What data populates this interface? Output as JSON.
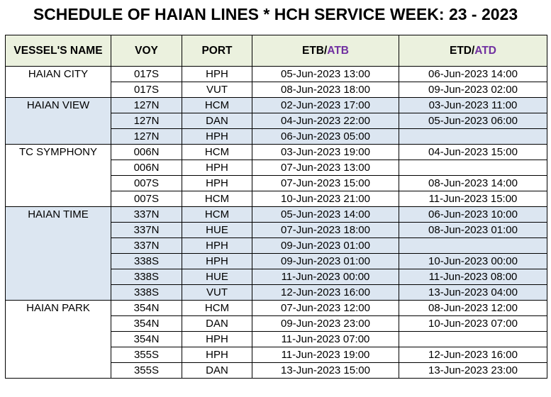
{
  "title": "SCHEDULE OF HAIAN LINES * HCH SERVICE WEEK: 23 - 2023",
  "header_color": "#ebf1de",
  "band_color": "#dce6f1",
  "accent_color": "#7030a0",
  "columns": [
    {
      "text": "VESSEL'S NAME"
    },
    {
      "text": "VOY"
    },
    {
      "text": "PORT"
    },
    {
      "text": "ETB/",
      "accent": "ATB"
    },
    {
      "text": "ETD/",
      "accent": "ATD"
    }
  ],
  "vessels": [
    {
      "name": "HAIAN CITY",
      "calls": [
        [
          "017S",
          "HPH",
          "05-Jun-2023 13:00",
          "06-Jun-2023 14:00"
        ],
        [
          "017S",
          "VUT",
          "08-Jun-2023 18:00",
          "09-Jun-2023 02:00"
        ]
      ]
    },
    {
      "name": "HAIAN VIEW",
      "calls": [
        [
          "127N",
          "HCM",
          "02-Jun-2023 17:00",
          "03-Jun-2023 11:00"
        ],
        [
          "127N",
          "DAN",
          "04-Jun-2023 22:00",
          "05-Jun-2023 06:00"
        ],
        [
          "127N",
          "HPH",
          "06-Jun-2023 05:00",
          null
        ]
      ]
    },
    {
      "name": "TC SYMPHONY",
      "calls": [
        [
          "006N",
          "HCM",
          "03-Jun-2023 19:00",
          "04-Jun-2023 15:00"
        ],
        [
          "006N",
          "HPH",
          "07-Jun-2023 13:00",
          null
        ],
        [
          "007S",
          "HPH",
          "07-Jun-2023 15:00",
          "08-Jun-2023 14:00"
        ],
        [
          "007S",
          "HCM",
          "10-Jun-2023 21:00",
          "11-Jun-2023 15:00"
        ]
      ]
    },
    {
      "name": "HAIAN TIME",
      "calls": [
        [
          "337N",
          "HCM",
          "05-Jun-2023 14:00",
          "06-Jun-2023 10:00"
        ],
        [
          "337N",
          "HUE",
          "07-Jun-2023 18:00",
          "08-Jun-2023 01:00"
        ],
        [
          "337N",
          "HPH",
          "09-Jun-2023 01:00",
          null
        ],
        [
          "338S",
          "HPH",
          "09-Jun-2023 01:00",
          "10-Jun-2023 00:00"
        ],
        [
          "338S",
          "HUE",
          "11-Jun-2023 00:00",
          "11-Jun-2023 08:00"
        ],
        [
          "338S",
          "VUT",
          "12-Jun-2023 16:00",
          "13-Jun-2023 04:00"
        ]
      ]
    },
    {
      "name": "HAIAN PARK",
      "calls": [
        [
          "354N",
          "HCM",
          "07-Jun-2023 12:00",
          "08-Jun-2023 12:00"
        ],
        [
          "354N",
          "DAN",
          "09-Jun-2023 23:00",
          "10-Jun-2023 07:00"
        ],
        [
          "354N",
          "HPH",
          "11-Jun-2023 07:00",
          null
        ],
        [
          "355S",
          "HPH",
          "11-Jun-2023 19:00",
          "12-Jun-2023 16:00"
        ],
        [
          "355S",
          "DAN",
          "13-Jun-2023 15:00",
          "13-Jun-2023 23:00"
        ]
      ]
    }
  ]
}
